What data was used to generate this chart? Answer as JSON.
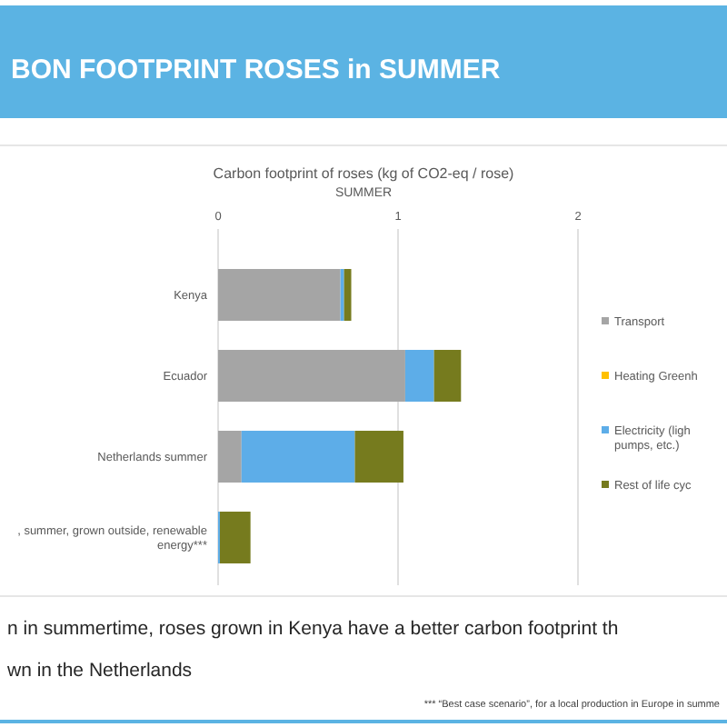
{
  "chart_data": {
    "type": "bar",
    "orientation": "horizontal",
    "stacked": true,
    "title": "Carbon footprint of roses (kg of CO2-eq / rose)",
    "subtitle": "SUMMER",
    "categories": [
      "Kenya",
      "Ecuador",
      "Netherlands summer",
      ", summer, grown outside, renewable energy***"
    ],
    "series": [
      {
        "name": "Transport",
        "color": "#a5a5a5",
        "values": [
          0.68,
          1.04,
          0.13,
          0
        ]
      },
      {
        "name": "Heating Greenh",
        "color": "#ffc000",
        "values": [
          0,
          0,
          0,
          0
        ]
      },
      {
        "name": "Electricity (ligh pumps, etc.)",
        "color": "#5dade8",
        "values": [
          0.02,
          0.16,
          0.63,
          0.01
        ]
      },
      {
        "name": "Rest of life cyc",
        "color": "#767b1e",
        "values": [
          0.04,
          0.15,
          0.27,
          0.17
        ]
      }
    ],
    "xlim": [
      0,
      2
    ],
    "xticks": [
      0,
      1,
      2
    ],
    "grid": "x",
    "legend": "right",
    "annotations": [
      "BON FOOTPRINT ROSES in SUMMER",
      "n in summertime, roses grown in Kenya have a better carbon footprint th",
      "wn in the Netherlands",
      "*** “Best case scenario”, for a local production in Europe in summe"
    ]
  }
}
